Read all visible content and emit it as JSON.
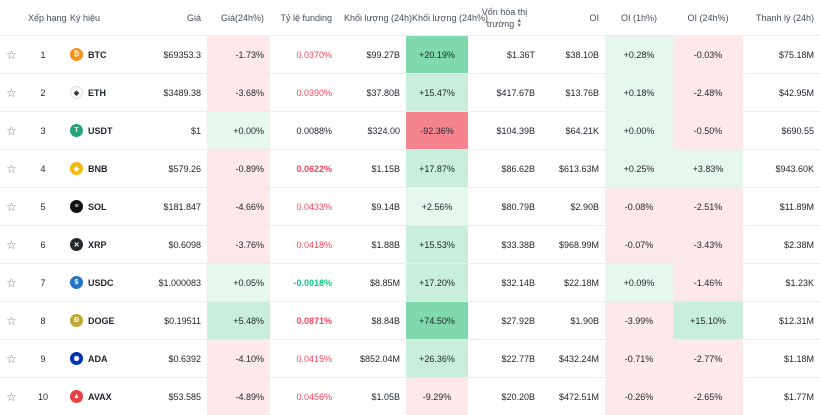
{
  "headers": {
    "rank": "Xếp hạng",
    "symbol": "Ký hiệu",
    "price": "Giá",
    "change24h": "Giá(24h%)",
    "funding": "Tỷ lệ funding",
    "volume24h": "Khối lượng (24h)",
    "volume24hpct": "Khối lượng (24h%)",
    "mcap": "Vốn hóa thị trường",
    "oi": "OI",
    "oi1h": "OI (1h%)",
    "oi24h": "OI (24h%)",
    "liq24h": "Thanh lý (24h)"
  },
  "rows": [
    {
      "rank": "1",
      "symbol": "BTC",
      "icon": "bitcoin-icon",
      "iconColor": "#f7931a",
      "iconGlyph": "₿",
      "price": "$69353.3",
      "change": "-1.73%",
      "funding": "0.0370%",
      "volume": "$99.27B",
      "volumePct": "+20.19%",
      "mcap": "$1.36T",
      "oi": "$38.10B",
      "oi1h": "+0.28%",
      "oi24h": "-0.03%",
      "liq": "$75.18M"
    },
    {
      "rank": "2",
      "symbol": "ETH",
      "icon": "ethereum-icon",
      "iconColor": "#ffffff",
      "iconGlyph": "◆",
      "price": "$3489.38",
      "change": "-3.68%",
      "funding": "0.0390%",
      "volume": "$37.80B",
      "volumePct": "+15.47%",
      "mcap": "$417.67B",
      "oi": "$13.76B",
      "oi1h": "+0.18%",
      "oi24h": "-2.48%",
      "liq": "$42.95M"
    },
    {
      "rank": "3",
      "symbol": "USDT",
      "icon": "tether-icon",
      "iconColor": "#26a17b",
      "iconGlyph": "T",
      "price": "$1",
      "change": "+0.00%",
      "funding": "0.0088%",
      "volume": "$324.00",
      "volumePct": "-92.36%",
      "mcap": "$104.39B",
      "oi": "$64.21K",
      "oi1h": "+0.00%",
      "oi24h": "-0.50%",
      "liq": "$690.55"
    },
    {
      "rank": "4",
      "symbol": "BNB",
      "icon": "bnb-icon",
      "iconColor": "#f0b90b",
      "iconGlyph": "◈",
      "price": "$579.26",
      "change": "-0.89%",
      "funding": "0.0622%",
      "volume": "$1.15B",
      "volumePct": "+17.87%",
      "mcap": "$86.62B",
      "oi": "$613.63M",
      "oi1h": "+0.25%",
      "oi24h": "+3.83%",
      "liq": "$943.60K"
    },
    {
      "rank": "5",
      "symbol": "SOL",
      "icon": "solana-icon",
      "iconColor": "#111111",
      "iconGlyph": "≡",
      "price": "$181.847",
      "change": "-4.66%",
      "funding": "0.0433%",
      "volume": "$9.14B",
      "volumePct": "+2.56%",
      "mcap": "$80.79B",
      "oi": "$2.90B",
      "oi1h": "-0.08%",
      "oi24h": "-2.51%",
      "liq": "$11.89M"
    },
    {
      "rank": "6",
      "symbol": "XRP",
      "icon": "xrp-icon",
      "iconColor": "#23292f",
      "iconGlyph": "✕",
      "price": "$0.6098",
      "change": "-3.76%",
      "funding": "0.0418%",
      "volume": "$1.88B",
      "volumePct": "+15.53%",
      "mcap": "$33.38B",
      "oi": "$968.99M",
      "oi1h": "-0.07%",
      "oi24h": "-3.43%",
      "liq": "$2.38M"
    },
    {
      "rank": "7",
      "symbol": "USDC",
      "icon": "usdc-icon",
      "iconColor": "#2775ca",
      "iconGlyph": "$",
      "price": "$1.000083",
      "change": "+0.05%",
      "funding": "-0.0018%",
      "volume": "$8.85M",
      "volumePct": "+17.20%",
      "mcap": "$32.14B",
      "oi": "$22.18M",
      "oi1h": "+0.09%",
      "oi24h": "-1.46%",
      "liq": "$1.23K"
    },
    {
      "rank": "8",
      "symbol": "DOGE",
      "icon": "dogecoin-icon",
      "iconColor": "#c2a633",
      "iconGlyph": "Ð",
      "price": "$0.19511",
      "change": "+5.48%",
      "funding": "0.0871%",
      "volume": "$8.84B",
      "volumePct": "+74.50%",
      "mcap": "$27.92B",
      "oi": "$1.90B",
      "oi1h": "-3.99%",
      "oi24h": "+15.10%",
      "liq": "$12.31M"
    },
    {
      "rank": "9",
      "symbol": "ADA",
      "icon": "cardano-icon",
      "iconColor": "#0033ad",
      "iconGlyph": "✺",
      "price": "$0.6392",
      "change": "-4.10%",
      "funding": "0.0415%",
      "volume": "$852.04M",
      "volumePct": "+26.36%",
      "mcap": "$22.77B",
      "oi": "$432.24M",
      "oi1h": "-0.71%",
      "oi24h": "-2.77%",
      "liq": "$1.18M"
    },
    {
      "rank": "10",
      "symbol": "AVAX",
      "icon": "avalanche-icon",
      "iconColor": "#e84142",
      "iconGlyph": "▲",
      "price": "$53.585",
      "change": "-4.89%",
      "funding": "0.0456%",
      "volume": "$1.05B",
      "volumePct": "-9.29%",
      "mcap": "$20.20B",
      "oi": "$472.51M",
      "oi1h": "-0.26%",
      "oi24h": "-2.65%",
      "liq": "$1.77M"
    }
  ],
  "styles": {
    "change": [
      "bg-r1",
      "bg-r1",
      "bg-g1",
      "bg-r1",
      "bg-r1",
      "bg-r1",
      "bg-g1",
      "bg-g2",
      "bg-r1",
      "bg-r1"
    ],
    "fundingColor": [
      "neg",
      "neg",
      "neu",
      "neg bold",
      "neg",
      "neg",
      "pos bold",
      "neg bold",
      "neg",
      "neg"
    ],
    "volumePct": [
      "bg-g3",
      "bg-g2",
      "bg-r3",
      "bg-g2",
      "bg-g1",
      "bg-g2",
      "bg-g2",
      "bg-g3",
      "bg-g2",
      "bg-r1"
    ],
    "oi1h": [
      "bg-g1",
      "bg-g1",
      "bg-g1",
      "bg-g1",
      "bg-r1",
      "bg-r1",
      "bg-g1",
      "bg-r1",
      "bg-r1",
      "bg-r1"
    ],
    "oi24h": [
      "bg-r1",
      "bg-r1",
      "bg-r1",
      "bg-g1",
      "bg-r1",
      "bg-r1",
      "bg-r1",
      "bg-g2",
      "bg-r1",
      "bg-r1"
    ]
  }
}
